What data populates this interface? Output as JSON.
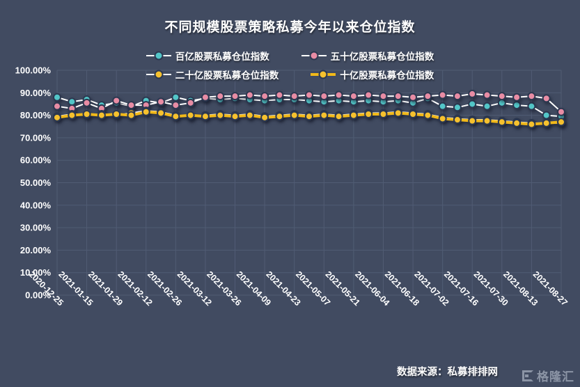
{
  "page": {
    "background": "#414b61"
  },
  "chart_data": {
    "type": "line",
    "title": "不同规模股票策略私募今年以来仓位指数",
    "grid": true,
    "legend_position": "top",
    "ylim": [
      0,
      100
    ],
    "y_tick_labels": [
      "0.00%",
      "10.00%",
      "20.00%",
      "30.00%",
      "40.00%",
      "50.00%",
      "60.00%",
      "70.00%",
      "80.00%",
      "90.00%",
      "100.00%"
    ],
    "x_tick_labels": [
      "2020-12-25",
      "2021-01-15",
      "2021-01-29",
      "2021-02-12",
      "2021-02-26",
      "2021-03-12",
      "2021-03-26",
      "2021-04-09",
      "2021-04-23",
      "2021-05-07",
      "2021-05-21",
      "2021-06-04",
      "2021-06-18",
      "2021-07-02",
      "2021-07-16",
      "2021-07-30",
      "2021-08-13",
      "2021-08-27"
    ],
    "points_per_series": 35,
    "colors": {
      "marker_stroke": "#2c3850",
      "grid": "#515c74",
      "teal": "#53c6c8",
      "pink": "#e88ca4",
      "yellow": "#f6c12e",
      "line_white": "#ffffff",
      "line_yellow": "#f2b919"
    },
    "series": [
      {
        "name": "百亿股票私募仓位指数",
        "marker_color": "#53c6c8",
        "line_color": "#ffffff",
        "line_width": 2,
        "values": [
          88,
          86,
          87,
          84.5,
          85.5,
          84,
          86.5,
          85.5,
          88,
          86.5,
          87.5,
          87,
          87.5,
          87,
          86.5,
          87,
          87,
          86.5,
          86,
          86.5,
          86,
          86.5,
          86,
          86.5,
          85.5,
          87.5,
          84,
          83.5,
          85,
          84,
          85.5,
          84.5,
          84,
          80,
          79.5
        ]
      },
      {
        "name": "五十亿股票私募仓位指数",
        "marker_color": "#e88ca4",
        "line_color": "#ffffff",
        "line_width": 2,
        "values": [
          84,
          83,
          85.5,
          83,
          86.5,
          84.5,
          84.5,
          86,
          84.5,
          85.5,
          88,
          88.5,
          88.5,
          89,
          88.5,
          89,
          88.5,
          89,
          88.5,
          89,
          88.5,
          89,
          88.5,
          88.5,
          88,
          88.5,
          89,
          88.5,
          89.5,
          89,
          88.5,
          88,
          88.5,
          87.5,
          81.5
        ]
      },
      {
        "name": "二十亿股票私募仓位指数",
        "marker_color": "#f6c12e",
        "line_color": "#ffffff",
        "line_width": 2,
        "values": [
          79.5,
          80.5,
          80,
          80.5,
          80,
          81,
          82,
          81.5,
          80,
          79.5,
          80,
          80.5,
          80,
          80.5,
          79.5,
          80,
          80.5,
          80,
          80.5,
          80,
          80.5,
          81,
          81,
          81.5,
          81,
          80.5,
          79,
          78.5,
          78,
          78,
          77.5,
          77,
          76.5,
          76.5,
          76.5
        ]
      },
      {
        "name": "十亿股票私募仓位指数",
        "marker_color": "#f6c12e",
        "line_color": "#f2b919",
        "line_width": 4,
        "values": [
          79,
          80,
          80.5,
          80,
          80.5,
          80,
          81.5,
          81,
          79.5,
          80,
          79.5,
          80,
          79.5,
          80,
          79,
          79.5,
          80,
          79.5,
          80,
          79.5,
          80,
          80.5,
          80.5,
          81,
          80.5,
          80,
          78.5,
          78,
          77.5,
          77.5,
          77,
          76.5,
          76,
          76.5,
          77
        ]
      }
    ]
  },
  "footer": {
    "source": "数据来源：私募排排网"
  },
  "watermark": {
    "text": "格隆汇"
  }
}
